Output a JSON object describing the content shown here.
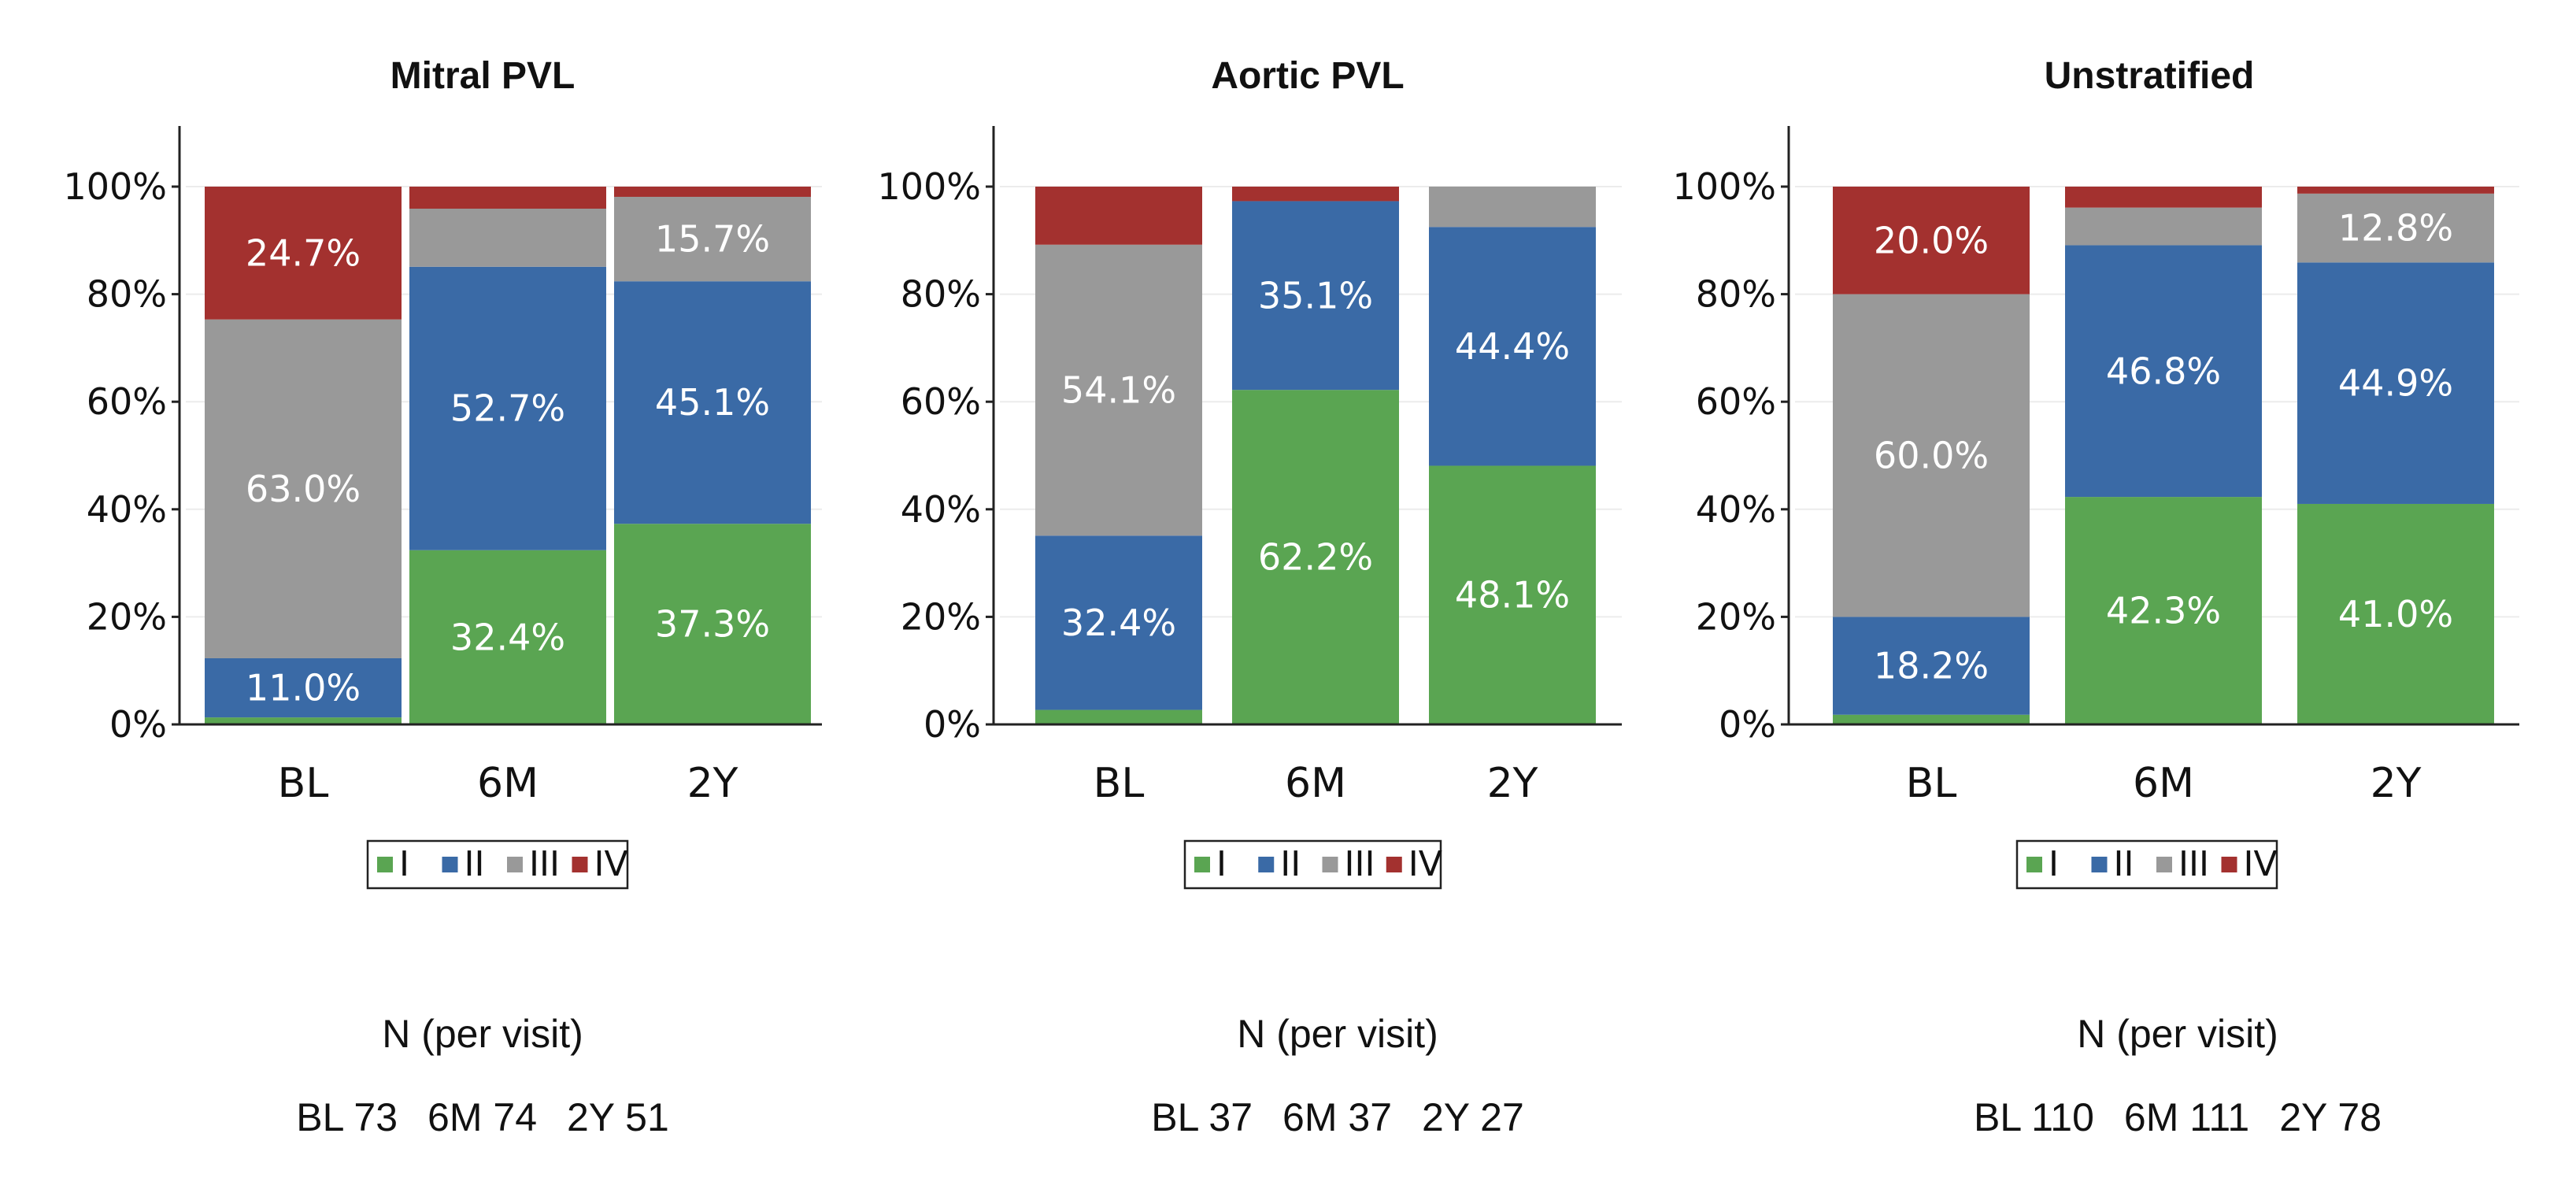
{
  "chart_data": [
    {
      "type": "bar",
      "stacked": true,
      "title": "Mitral PVL",
      "categories": [
        "BL",
        "6M",
        "2Y"
      ],
      "ylim": [
        0,
        100
      ],
      "yticks": [
        "0%",
        "20%",
        "40%",
        "60%",
        "80%",
        "100%"
      ],
      "legend_position": "bottom",
      "series": [
        {
          "name": "I",
          "values": [
            1.3,
            32.4,
            37.3
          ]
        },
        {
          "name": "II",
          "values": [
            11.0,
            52.7,
            45.1
          ]
        },
        {
          "name": "III",
          "values": [
            63.0,
            10.8,
            15.7
          ]
        },
        {
          "name": "IV",
          "values": [
            24.7,
            4.1,
            1.9
          ]
        }
      ],
      "labels": [
        {
          "text": "11.0%",
          "cat": 0,
          "series": 1
        },
        {
          "text": "63.0%",
          "cat": 0,
          "series": 2
        },
        {
          "text": "24.7%",
          "cat": 0,
          "series": 3
        },
        {
          "text": "32.4%",
          "cat": 1,
          "series": 0
        },
        {
          "text": "52.7%",
          "cat": 1,
          "series": 1
        },
        {
          "text": "37.3%",
          "cat": 2,
          "series": 0
        },
        {
          "text": "45.1%",
          "cat": 2,
          "series": 1
        },
        {
          "text": "15.7%",
          "cat": 2,
          "series": 2
        }
      ],
      "n_header": "N  (per visit)",
      "n_counts": [
        "BL 73",
        "6M 74",
        "2Y 51"
      ]
    },
    {
      "type": "bar",
      "stacked": true,
      "title": "Aortic PVL",
      "categories": [
        "BL",
        "6M",
        "2Y"
      ],
      "ylim": [
        0,
        100
      ],
      "yticks": [
        "0%",
        "20%",
        "40%",
        "60%",
        "80%",
        "100%"
      ],
      "legend_position": "bottom",
      "series": [
        {
          "name": "I",
          "values": [
            2.7,
            62.2,
            48.1
          ]
        },
        {
          "name": "II",
          "values": [
            32.4,
            35.1,
            44.4
          ]
        },
        {
          "name": "III",
          "values": [
            54.1,
            0.0,
            7.5
          ]
        },
        {
          "name": "IV",
          "values": [
            10.8,
            2.7,
            0.0
          ]
        }
      ],
      "labels": [
        {
          "text": "32.4%",
          "cat": 0,
          "series": 1
        },
        {
          "text": "54.1%",
          "cat": 0,
          "series": 2
        },
        {
          "text": "62.2%",
          "cat": 1,
          "series": 0
        },
        {
          "text": "35.1%",
          "cat": 1,
          "series": 1
        },
        {
          "text": "48.1%",
          "cat": 2,
          "series": 0
        },
        {
          "text": "44.4%",
          "cat": 2,
          "series": 1
        }
      ],
      "n_header": "N  (per visit)",
      "n_counts": [
        "BL 37",
        "6M 37",
        "2Y 27"
      ]
    },
    {
      "type": "bar",
      "stacked": true,
      "title": "Unstratified",
      "categories": [
        "BL",
        "6M",
        "2Y"
      ],
      "ylim": [
        0,
        100
      ],
      "yticks": [
        "0%",
        "20%",
        "40%",
        "60%",
        "80%",
        "100%"
      ],
      "legend_position": "bottom",
      "series": [
        {
          "name": "I",
          "values": [
            1.8,
            42.3,
            41.0
          ]
        },
        {
          "name": "II",
          "values": [
            18.2,
            46.8,
            44.9
          ]
        },
        {
          "name": "III",
          "values": [
            60.0,
            7.0,
            12.8
          ]
        },
        {
          "name": "IV",
          "values": [
            20.0,
            3.9,
            1.3
          ]
        }
      ],
      "labels": [
        {
          "text": "18.2%",
          "cat": 0,
          "series": 1
        },
        {
          "text": "60.0%",
          "cat": 0,
          "series": 2
        },
        {
          "text": "20.0%",
          "cat": 0,
          "series": 3
        },
        {
          "text": "42.3%",
          "cat": 1,
          "series": 0
        },
        {
          "text": "46.8%",
          "cat": 1,
          "series": 1
        },
        {
          "text": "41.0%",
          "cat": 2,
          "series": 0
        },
        {
          "text": "44.9%",
          "cat": 2,
          "series": 1
        },
        {
          "text": "12.8%",
          "cat": 2,
          "series": 2
        }
      ],
      "n_header": "N  (per visit)",
      "n_counts": [
        "BL 110",
        "6M 111",
        "2Y 78"
      ]
    }
  ],
  "colors": {
    "I": "#5aa552",
    "II": "#3a6aa6",
    "III": "#999999",
    "IV": "#a3312f"
  }
}
